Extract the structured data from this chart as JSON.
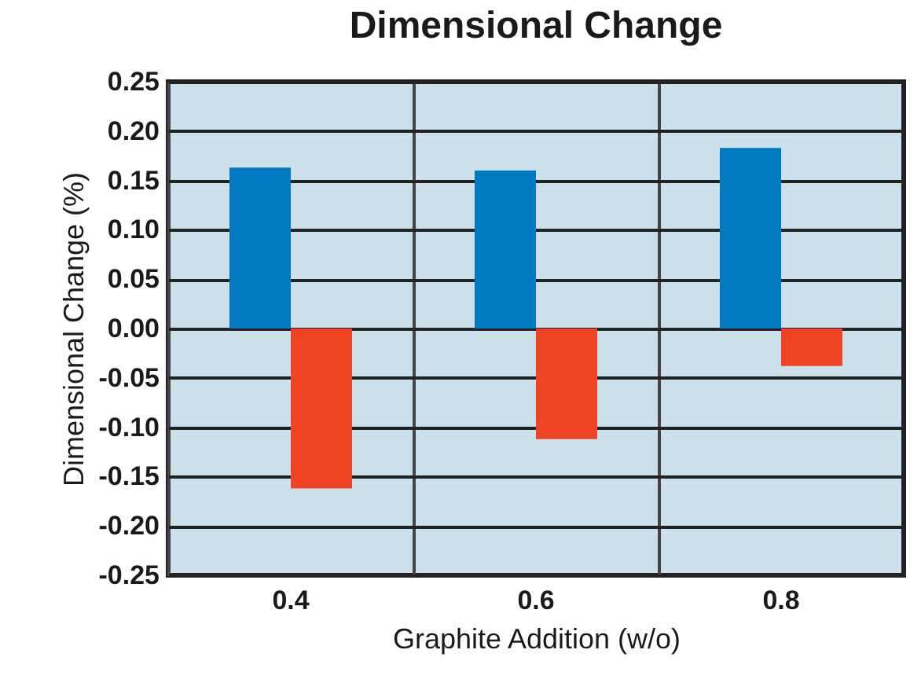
{
  "chart_data": {
    "type": "bar",
    "title": "Dimensional Change",
    "xlabel": "Graphite Addition (w/o)",
    "ylabel": "Dimensional Change (%)",
    "categories": [
      "0.4",
      "0.6",
      "0.8"
    ],
    "series": [
      {
        "color": "#0079c1",
        "values": [
          0.163,
          0.16,
          0.183
        ]
      },
      {
        "color": "#ef4423",
        "values": [
          -0.162,
          -0.112,
          -0.038
        ]
      }
    ],
    "ylim": [
      -0.25,
      0.25
    ],
    "yticks": [
      {
        "value": -0.25,
        "label": "-0.25"
      },
      {
        "value": -0.2,
        "label": "-0.20"
      },
      {
        "value": -0.15,
        "label": "-0.15"
      },
      {
        "value": -0.1,
        "label": "-0.10"
      },
      {
        "value": -0.05,
        "label": "-0.05"
      },
      {
        "value": 0,
        "label": "0.00"
      },
      {
        "value": 0.05,
        "label": "0.05"
      },
      {
        "value": 0.1,
        "label": "0.10"
      },
      {
        "value": 0.15,
        "label": "0.15"
      },
      {
        "value": 0.2,
        "label": "0.20"
      },
      {
        "value": 0.25,
        "label": "0.25"
      }
    ],
    "grid": true,
    "legend": false
  }
}
